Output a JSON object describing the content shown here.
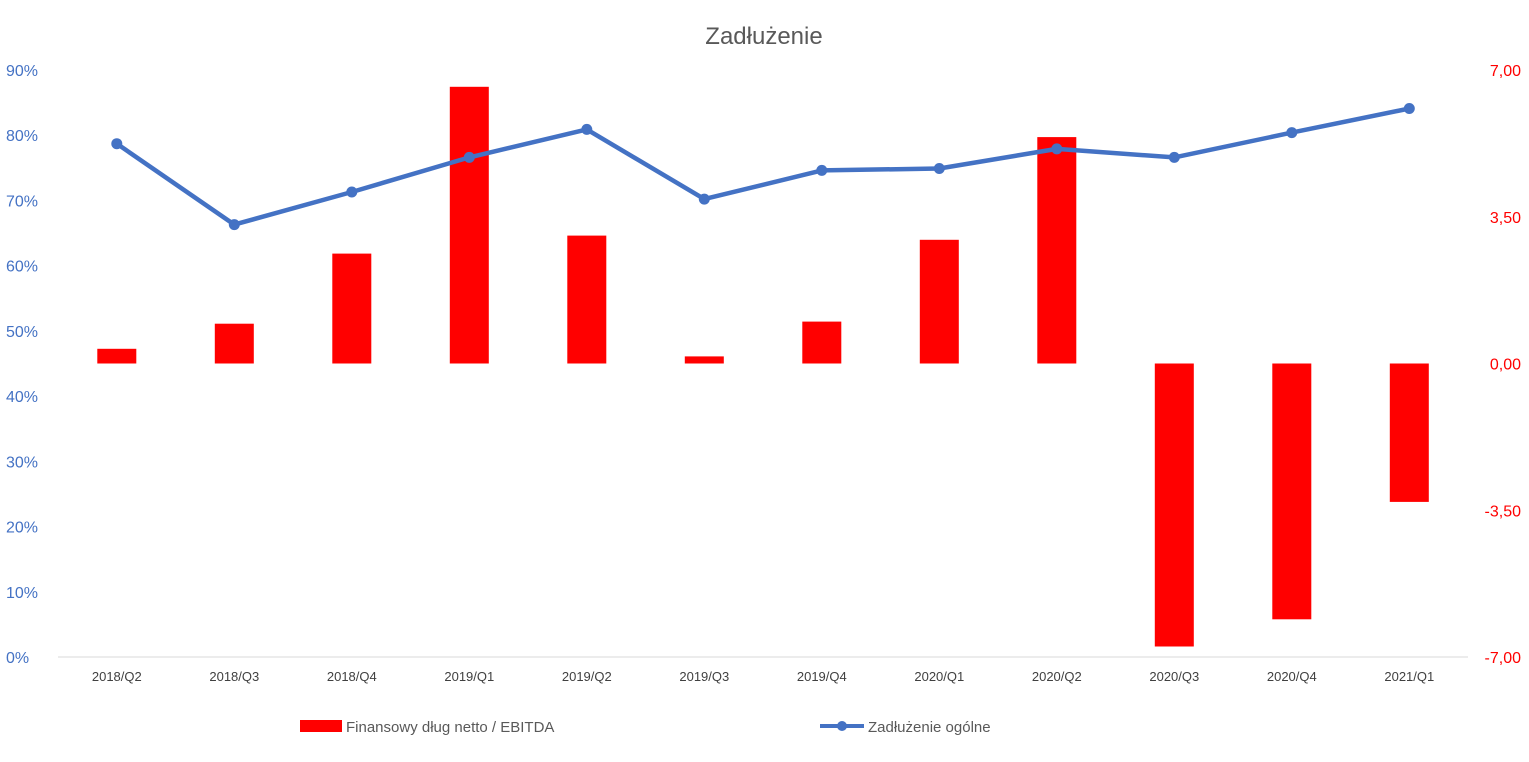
{
  "chart_data": {
    "type": "bar",
    "title": "Zadłużenie",
    "categories": [
      "2018/Q2",
      "2018/Q3",
      "2018/Q4",
      "2019/Q1",
      "2019/Q2",
      "2019/Q3",
      "2019/Q4",
      "2020/Q1",
      "2020/Q2",
      "2020/Q3",
      "2020/Q4",
      "2021/Q1"
    ],
    "series": [
      {
        "name": "Finansowy dług netto / EBITDA",
        "type": "bar",
        "axis": "right",
        "color": "#FF0000",
        "values": [
          0.35,
          0.95,
          2.62,
          6.6,
          3.05,
          0.17,
          1.0,
          2.95,
          5.4,
          -6.75,
          -6.1,
          -3.3
        ]
      },
      {
        "name": "Zadłużenie ogólne",
        "type": "line",
        "axis": "left",
        "color": "#4472C4",
        "values": [
          78.7,
          66.3,
          71.3,
          76.6,
          80.9,
          70.2,
          74.6,
          74.9,
          77.9,
          76.6,
          80.4,
          84.1
        ]
      }
    ],
    "y_left": {
      "ticks": [
        "0%",
        "10%",
        "20%",
        "30%",
        "40%",
        "50%",
        "60%",
        "70%",
        "80%",
        "90%"
      ],
      "min": 0,
      "max": 90
    },
    "y_right": {
      "ticks": [
        "7,00",
        "3,50",
        "0,00",
        "-3,50",
        "-7,00"
      ],
      "min": -7,
      "max": 7
    },
    "grid": false,
    "legend_position": "bottom"
  }
}
